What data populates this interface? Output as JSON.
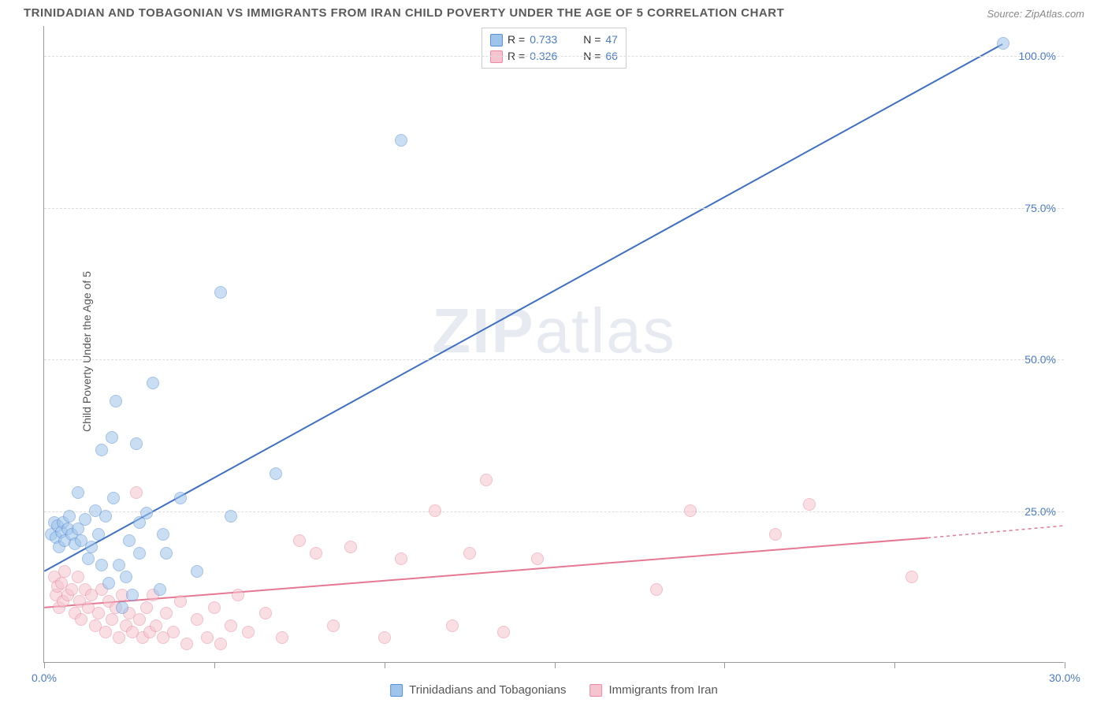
{
  "title": "TRINIDADIAN AND TOBAGONIAN VS IMMIGRANTS FROM IRAN CHILD POVERTY UNDER THE AGE OF 5 CORRELATION CHART",
  "source": "Source: ZipAtlas.com",
  "ylabel": "Child Poverty Under the Age of 5",
  "watermark_a": "ZIP",
  "watermark_b": "atlas",
  "chart": {
    "type": "scatter",
    "xlim": [
      0,
      30
    ],
    "ylim": [
      0,
      105
    ],
    "xticks": [
      0,
      5,
      10,
      15,
      20,
      25,
      30
    ],
    "xtick_labels": [
      "0.0%",
      "",
      "",
      "",
      "",
      "",
      "30.0%"
    ],
    "yticks": [
      25,
      50,
      75,
      100
    ],
    "ytick_labels": [
      "25.0%",
      "50.0%",
      "75.0%",
      "100.0%"
    ],
    "grid_color": "#dddddd",
    "background_color": "#ffffff",
    "axis_color": "#999999",
    "tick_label_color": "#4a7bc8",
    "marker_radius": 8,
    "marker_opacity": 0.55
  },
  "series": [
    {
      "name": "Trinidadians and Tobagonians",
      "color_fill": "#9ec4ea",
      "color_stroke": "#5b8fd6",
      "line_color": "#3d6fc4",
      "line_width": 2,
      "R": "0.733",
      "N": "47",
      "trend": {
        "x1": 0,
        "y1": 15,
        "x2": 28.2,
        "y2": 102
      },
      "points": [
        [
          0.2,
          21
        ],
        [
          0.3,
          23
        ],
        [
          0.35,
          20.5
        ],
        [
          0.4,
          22.5
        ],
        [
          0.45,
          19
        ],
        [
          0.5,
          21.5
        ],
        [
          0.55,
          23
        ],
        [
          0.6,
          20
        ],
        [
          0.7,
          22
        ],
        [
          0.75,
          24
        ],
        [
          0.8,
          21
        ],
        [
          0.9,
          19.5
        ],
        [
          1.0,
          28
        ],
        [
          1.0,
          22
        ],
        [
          1.1,
          20
        ],
        [
          1.2,
          23.5
        ],
        [
          1.3,
          17
        ],
        [
          1.4,
          19
        ],
        [
          1.5,
          25
        ],
        [
          1.6,
          21
        ],
        [
          1.7,
          16
        ],
        [
          1.7,
          35
        ],
        [
          1.8,
          24
        ],
        [
          1.9,
          13
        ],
        [
          2.0,
          37
        ],
        [
          2.05,
          27
        ],
        [
          2.1,
          43
        ],
        [
          2.2,
          16
        ],
        [
          2.3,
          9
        ],
        [
          2.4,
          14
        ],
        [
          2.5,
          20
        ],
        [
          2.6,
          11
        ],
        [
          2.7,
          36
        ],
        [
          2.8,
          18
        ],
        [
          2.8,
          23
        ],
        [
          3.0,
          24.5
        ],
        [
          3.2,
          46
        ],
        [
          3.4,
          12
        ],
        [
          3.5,
          21
        ],
        [
          3.6,
          18
        ],
        [
          4.0,
          27
        ],
        [
          4.5,
          15
        ],
        [
          5.2,
          61
        ],
        [
          5.5,
          24
        ],
        [
          6.8,
          31
        ],
        [
          10.5,
          86
        ],
        [
          28.2,
          102
        ]
      ]
    },
    {
      "name": "Immigrants from Iran",
      "color_fill": "#f5c4cf",
      "color_stroke": "#e98ba3",
      "line_color": "#e57892",
      "line_width": 2,
      "R": "0.326",
      "N": "66",
      "trend": {
        "x1": 0,
        "y1": 9,
        "x2": 26,
        "y2": 20.5
      },
      "trend_extend": {
        "x1": 26,
        "y1": 20.5,
        "x2": 30,
        "y2": 22.5
      },
      "points": [
        [
          0.3,
          14
        ],
        [
          0.35,
          11
        ],
        [
          0.4,
          12.5
        ],
        [
          0.45,
          9
        ],
        [
          0.5,
          13
        ],
        [
          0.55,
          10
        ],
        [
          0.6,
          15
        ],
        [
          0.7,
          11
        ],
        [
          0.8,
          12
        ],
        [
          0.9,
          8
        ],
        [
          1.0,
          14
        ],
        [
          1.05,
          10
        ],
        [
          1.1,
          7
        ],
        [
          1.2,
          12
        ],
        [
          1.3,
          9
        ],
        [
          1.4,
          11
        ],
        [
          1.5,
          6
        ],
        [
          1.6,
          8
        ],
        [
          1.7,
          12
        ],
        [
          1.8,
          5
        ],
        [
          1.9,
          10
        ],
        [
          2.0,
          7
        ],
        [
          2.1,
          9
        ],
        [
          2.2,
          4
        ],
        [
          2.3,
          11
        ],
        [
          2.4,
          6
        ],
        [
          2.5,
          8
        ],
        [
          2.6,
          5
        ],
        [
          2.7,
          28
        ],
        [
          2.8,
          7
        ],
        [
          2.9,
          4
        ],
        [
          3.0,
          9
        ],
        [
          3.1,
          5
        ],
        [
          3.2,
          11
        ],
        [
          3.3,
          6
        ],
        [
          3.5,
          4
        ],
        [
          3.6,
          8
        ],
        [
          3.8,
          5
        ],
        [
          4.0,
          10
        ],
        [
          4.2,
          3
        ],
        [
          4.5,
          7
        ],
        [
          4.8,
          4
        ],
        [
          5.0,
          9
        ],
        [
          5.2,
          3
        ],
        [
          5.5,
          6
        ],
        [
          5.7,
          11
        ],
        [
          6.0,
          5
        ],
        [
          6.5,
          8
        ],
        [
          7.0,
          4
        ],
        [
          7.5,
          20
        ],
        [
          8.0,
          18
        ],
        [
          8.5,
          6
        ],
        [
          9.0,
          19
        ],
        [
          10.0,
          4
        ],
        [
          10.5,
          17
        ],
        [
          11.5,
          25
        ],
        [
          12.0,
          6
        ],
        [
          12.5,
          18
        ],
        [
          13.0,
          30
        ],
        [
          13.5,
          5
        ],
        [
          14.5,
          17
        ],
        [
          18.0,
          12
        ],
        [
          19.0,
          25
        ],
        [
          21.5,
          21
        ],
        [
          22.5,
          26
        ],
        [
          25.5,
          14
        ]
      ]
    }
  ],
  "legend_top": {
    "r_label": "R =",
    "n_label": "N ="
  },
  "legend_bottom": [
    {
      "label": "Trinidadians and Tobagonians",
      "fill": "#9ec4ea",
      "stroke": "#5b8fd6"
    },
    {
      "label": "Immigrants from Iran",
      "fill": "#f5c4cf",
      "stroke": "#e98ba3"
    }
  ]
}
